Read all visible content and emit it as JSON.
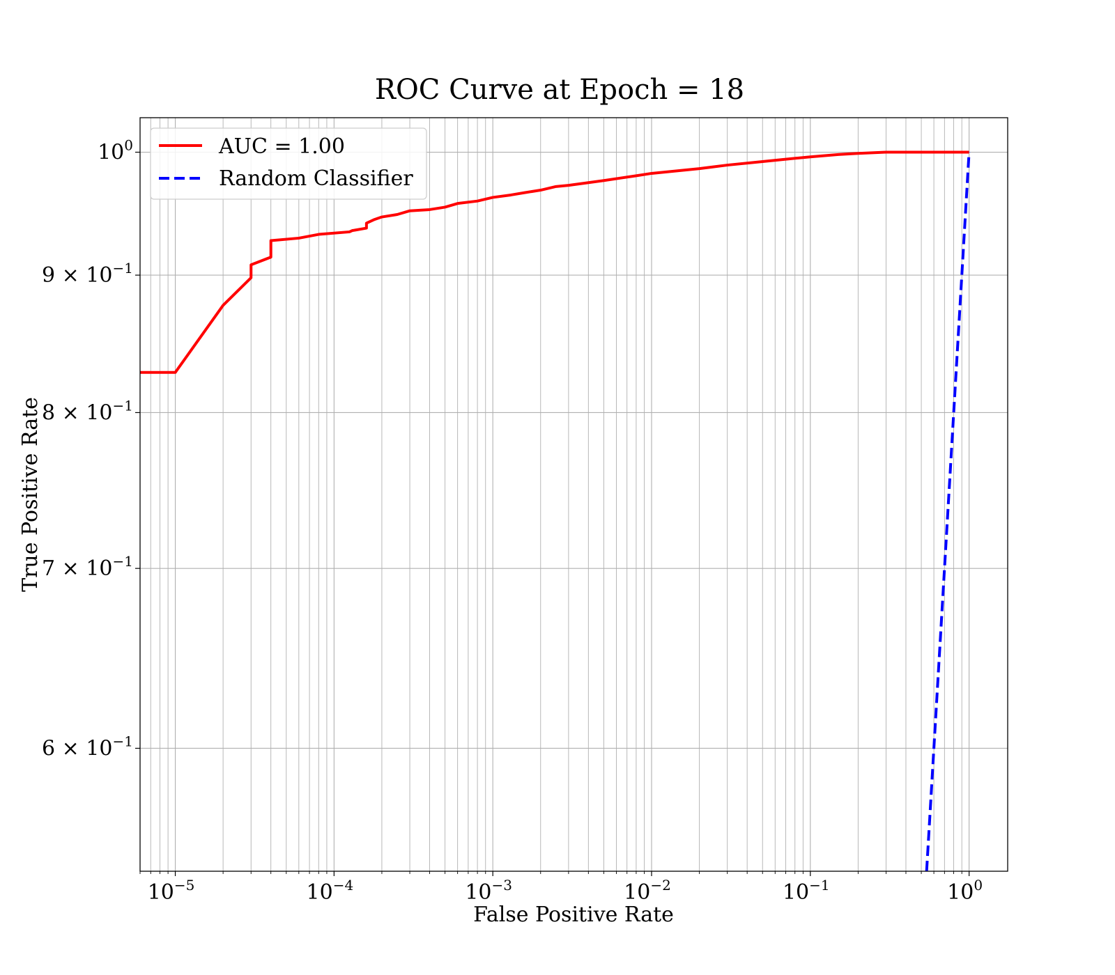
{
  "chart_data": {
    "type": "line",
    "title": "ROC Curve at Epoch = 18",
    "xlabel": "False Positive Rate",
    "ylabel": "True Positive Rate",
    "xscale": "log",
    "yscale": "log",
    "xlim": [
      6e-06,
      1.75
    ],
    "ylim": [
      0.54,
      1.03
    ],
    "grid": "major and minor",
    "legend_position": "upper-left",
    "x_ticks": [
      {
        "value": 1e-05,
        "base": "10",
        "exp": "−5"
      },
      {
        "value": 0.0001,
        "base": "10",
        "exp": "−4"
      },
      {
        "value": 0.001,
        "base": "10",
        "exp": "−3"
      },
      {
        "value": 0.01,
        "base": "10",
        "exp": "−2"
      },
      {
        "value": 0.1,
        "base": "10",
        "exp": "−1"
      },
      {
        "value": 1,
        "base": "10",
        "exp": "0"
      }
    ],
    "y_ticks": [
      {
        "value": 1.0,
        "base": "10",
        "exp": "0"
      },
      {
        "value": 0.9,
        "base": "9 × 10",
        "exp": "−1"
      },
      {
        "value": 0.8,
        "base": "8 × 10",
        "exp": "−1"
      },
      {
        "value": 0.7,
        "base": "7 × 10",
        "exp": "−1"
      },
      {
        "value": 0.6,
        "base": "6 × 10",
        "exp": "−1"
      }
    ],
    "series": [
      {
        "name": "AUC = 1.00",
        "color": "#ff0000",
        "style": "solid",
        "x": [
          6e-06,
          1e-05,
          2e-05,
          3e-05,
          3e-05,
          4e-05,
          4e-05,
          6e-05,
          8e-05,
          0.000125,
          0.00013,
          0.00016,
          0.00016,
          0.00018,
          0.0002,
          0.00025,
          0.0003,
          0.0004,
          0.0005,
          0.0006,
          0.0008,
          0.001,
          0.0013,
          0.0016,
          0.002,
          0.0025,
          0.003,
          0.005,
          0.008,
          0.01,
          0.02,
          0.03,
          0.05,
          0.07,
          0.1,
          0.15,
          0.2,
          0.3,
          0.5,
          1.0
        ],
        "y": [
          0.828,
          0.828,
          0.877,
          0.898,
          0.908,
          0.914,
          0.927,
          0.929,
          0.932,
          0.934,
          0.935,
          0.937,
          0.941,
          0.944,
          0.946,
          0.948,
          0.951,
          0.952,
          0.954,
          0.957,
          0.959,
          0.962,
          0.964,
          0.966,
          0.968,
          0.971,
          0.972,
          0.976,
          0.98,
          0.982,
          0.986,
          0.989,
          0.992,
          0.994,
          0.996,
          0.998,
          0.999,
          1.0,
          1.0,
          1.0
        ]
      },
      {
        "name": "Random Classifier",
        "color": "#0000ff",
        "style": "dashed",
        "x": [
          0.54,
          1.0
        ],
        "y": [
          0.54,
          1.0
        ]
      }
    ]
  }
}
